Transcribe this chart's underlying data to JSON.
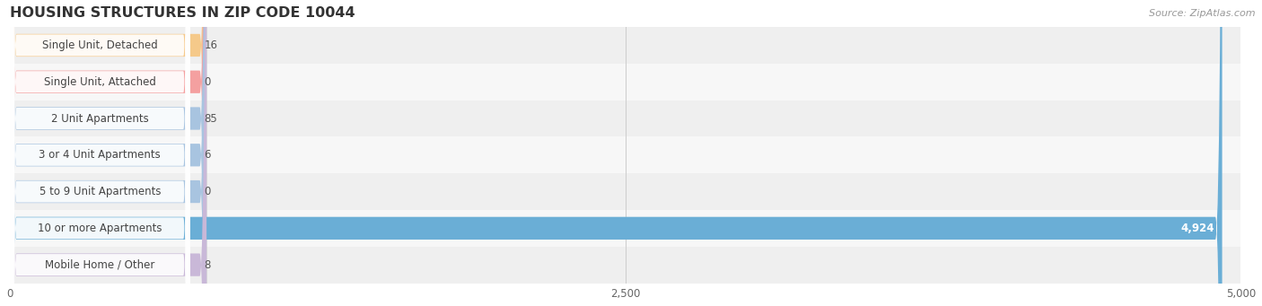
{
  "title": "HOUSING STRUCTURES IN ZIP CODE 10044",
  "source": "Source: ZipAtlas.com",
  "categories": [
    "Single Unit, Detached",
    "Single Unit, Attached",
    "2 Unit Apartments",
    "3 or 4 Unit Apartments",
    "5 to 9 Unit Apartments",
    "10 or more Apartments",
    "Mobile Home / Other"
  ],
  "values": [
    16,
    0,
    85,
    6,
    0,
    4924,
    8
  ],
  "bar_colors": [
    "#f5c98a",
    "#f4a0a0",
    "#a8c4e0",
    "#a8c4e0",
    "#a8c4e0",
    "#6aaed6",
    "#c9b8d8"
  ],
  "bg_row_colors": [
    "#efefef",
    "#f7f7f7"
  ],
  "xlim": [
    0,
    5000
  ],
  "xticks": [
    0,
    2500,
    5000
  ],
  "bar_height": 0.62,
  "background_color": "#ffffff",
  "title_fontsize": 11.5,
  "label_fontsize": 8.5,
  "tick_fontsize": 8.5,
  "source_fontsize": 8.0
}
